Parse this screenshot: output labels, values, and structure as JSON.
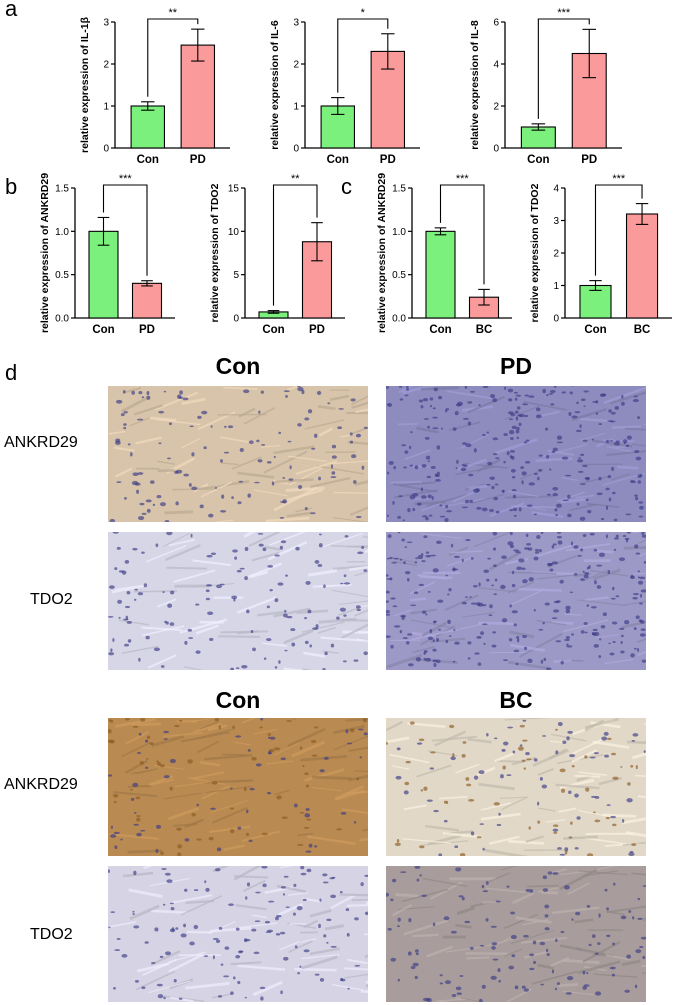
{
  "panel_labels": {
    "a": "a",
    "b": "b",
    "c": "c",
    "d": "d"
  },
  "stain_section": {
    "col_headers": {
      "con_top": "Con",
      "pd": "PD",
      "con_bottom": "Con",
      "bc": "BC"
    },
    "row_labels": {
      "ankrd29_top": "ANKRD29",
      "tdo2_top": "TDO2",
      "ankrd29_bottom": "ANKRD29",
      "tdo2_bottom": "TDO2"
    },
    "tissue_colors": {
      "con_pd_ankrd29_con": "#d8c4aa",
      "con_pd_ankrd29_pd": "#8e8cbe",
      "con_pd_tdo2_con": "#d7d6e6",
      "con_pd_tdo2_pd": "#9d99c6",
      "con_bc_ankrd29_con": "#b98a52",
      "con_bc_ankrd29_bc": "#e1d8c8",
      "con_bc_tdo2_con": "#d6d4e4",
      "con_bc_tdo2_bc": "#a89d9c"
    }
  },
  "chart_data": [
    {
      "type": "bar",
      "categories": [
        "Con",
        "PD"
      ],
      "values": [
        1.0,
        2.45
      ],
      "errors": [
        0.1,
        0.38
      ],
      "ylabel": "relative expression of IL-1β",
      "ylim": [
        0,
        3
      ],
      "yticks": [
        0,
        1,
        2,
        3
      ],
      "significance": "**",
      "colors": [
        "#7cf07c",
        "#fa9a9a"
      ]
    },
    {
      "type": "bar",
      "categories": [
        "Con",
        "PD"
      ],
      "values": [
        1.0,
        2.3
      ],
      "errors": [
        0.2,
        0.42
      ],
      "ylabel": "relative expression of IL-6",
      "ylim": [
        0,
        3
      ],
      "yticks": [
        0,
        1,
        2,
        3
      ],
      "significance": "*",
      "colors": [
        "#7cf07c",
        "#fa9a9a"
      ]
    },
    {
      "type": "bar",
      "categories": [
        "Con",
        "PD"
      ],
      "values": [
        1.0,
        4.5
      ],
      "errors": [
        0.15,
        1.15
      ],
      "ylabel": "relative expression of IL-8",
      "ylim": [
        0,
        6
      ],
      "yticks": [
        0,
        2,
        4,
        6
      ],
      "significance": "***",
      "colors": [
        "#7cf07c",
        "#fa9a9a"
      ]
    },
    {
      "type": "bar",
      "categories": [
        "Con",
        "PD"
      ],
      "values": [
        1.0,
        0.4
      ],
      "errors": [
        0.16,
        0.03
      ],
      "ylabel": "relative expression of ANKRD29",
      "ylim": [
        0,
        1.5
      ],
      "yticks": [
        "0.0",
        "0.5",
        "1.0",
        "1.5"
      ],
      "significance": "***",
      "colors": [
        "#7cf07c",
        "#fa9a9a"
      ]
    },
    {
      "type": "bar",
      "categories": [
        "Con",
        "PD"
      ],
      "values": [
        0.7,
        8.8
      ],
      "errors": [
        0.15,
        2.2
      ],
      "ylabel": "relative expression of TDO2",
      "ylim": [
        0,
        15
      ],
      "yticks": [
        0,
        5,
        10,
        15
      ],
      "significance": "**",
      "colors": [
        "#7cf07c",
        "#fa9a9a"
      ]
    },
    {
      "type": "bar",
      "categories": [
        "Con",
        "BC"
      ],
      "values": [
        1.0,
        0.24
      ],
      "errors": [
        0.04,
        0.09
      ],
      "ylabel": "relative expression of ANKRD29",
      "ylim": [
        0,
        1.5
      ],
      "yticks": [
        "0.0",
        "0.5",
        "1.0",
        "1.5"
      ],
      "significance": "***",
      "colors": [
        "#7cf07c",
        "#fa9a9a"
      ]
    },
    {
      "type": "bar",
      "categories": [
        "Con",
        "BC"
      ],
      "values": [
        1.0,
        3.2
      ],
      "errors": [
        0.15,
        0.32
      ],
      "ylabel": "relative expression of TDO2",
      "ylim": [
        0,
        4
      ],
      "yticks": [
        0,
        1,
        2,
        3,
        4
      ],
      "significance": "***",
      "colors": [
        "#7cf07c",
        "#fa9a9a"
      ]
    }
  ]
}
